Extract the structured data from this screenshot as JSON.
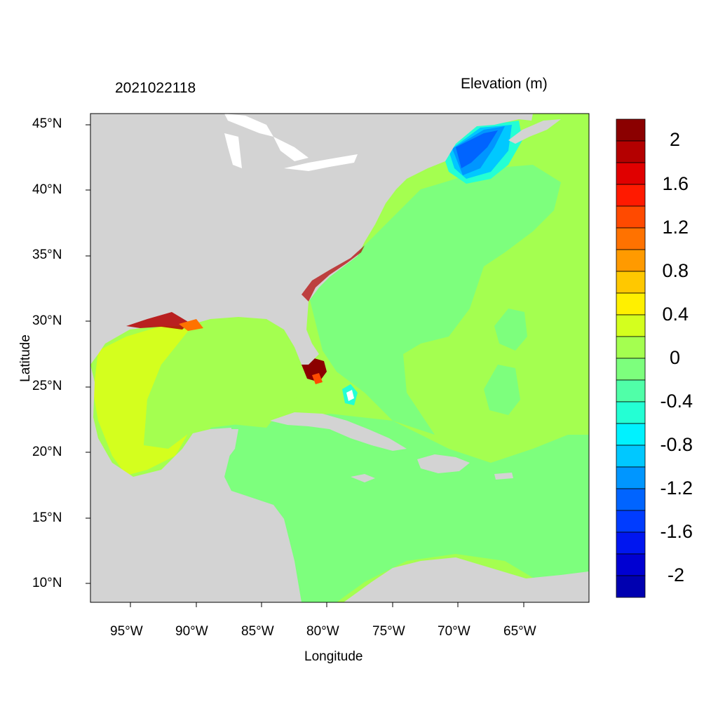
{
  "header": {
    "date_code": "2021022118",
    "variable_title": "Elevation (m)"
  },
  "axes": {
    "x_title": "Longitude",
    "y_title": "Latitude",
    "x_ticks": [
      "95°W",
      "90°W",
      "85°W",
      "80°W",
      "75°W",
      "70°W",
      "65°W"
    ],
    "y_ticks": [
      "45°N",
      "40°N",
      "35°N",
      "30°N",
      "25°N",
      "20°N",
      "15°N",
      "10°N"
    ]
  },
  "colorbar": {
    "labels": [
      "2",
      "1.6",
      "1.2",
      "0.8",
      "0.4",
      "0",
      "-0.4",
      "-0.8",
      "-1.2",
      "-1.6",
      "-2"
    ],
    "colors": [
      "#8b0000",
      "#b40000",
      "#e00000",
      "#ff1a00",
      "#ff4a00",
      "#ff7200",
      "#ff9a00",
      "#ffc800",
      "#fff000",
      "#d4ff1e",
      "#a4ff50",
      "#7dff7d",
      "#50ffa8",
      "#24ffd4",
      "#00f2ff",
      "#00c8ff",
      "#0096ff",
      "#0064ff",
      "#003cff",
      "#0016f0",
      "#0000d2",
      "#0000b0"
    ]
  },
  "map": {
    "land_color": "#d3d3d3",
    "ocean_base_color": "#a4ff50"
  }
}
